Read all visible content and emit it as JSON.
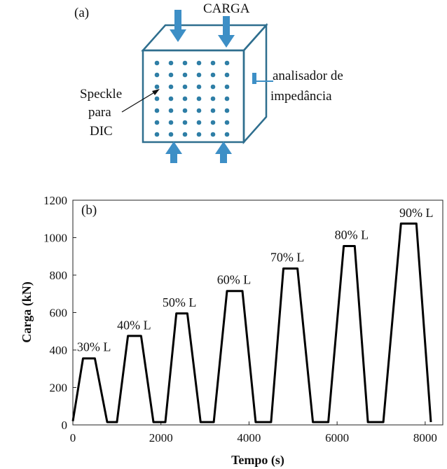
{
  "diagram": {
    "panel_label": "(a)",
    "load_label": "CARGA",
    "impedance_label_line1": "analisador de",
    "impedance_label_line2": "impedância",
    "speckle_label_line1": "Speckle",
    "speckle_label_line2": "para",
    "speckle_label_line3": "DIC",
    "colors": {
      "outline": "#2e6e8e",
      "arrow": "#3d8fc6",
      "dot": "#2e7ea6"
    }
  },
  "chart_data": {
    "type": "line",
    "panel_label": "(b)",
    "xlabel": "Tempo (s)",
    "ylabel": "Carga (kN)",
    "xlim": [
      0,
      8400
    ],
    "ylim": [
      0,
      1200
    ],
    "x_ticks": [
      0,
      2000,
      4000,
      6000,
      8000
    ],
    "y_ticks": [
      0,
      200,
      400,
      600,
      800,
      1000,
      1200
    ],
    "grid": false,
    "series": [
      {
        "x": [
          0,
          230,
          500,
          780,
          1000,
          1250,
          1550,
          1830,
          2100,
          2350,
          2600,
          2900,
          3200,
          3500,
          3850,
          4150,
          4500,
          4780,
          5100,
          5450,
          5800,
          6150,
          6400,
          6700,
          7050,
          7450,
          7800,
          8130
        ],
        "y": [
          20,
          355,
          355,
          15,
          15,
          475,
          475,
          15,
          15,
          595,
          595,
          15,
          15,
          715,
          715,
          15,
          15,
          835,
          835,
          15,
          15,
          955,
          955,
          15,
          15,
          1075,
          1075,
          15
        ]
      }
    ],
    "annotations": [
      {
        "text": "30% L",
        "x": 480,
        "y": 395
      },
      {
        "text": "40% L",
        "x": 1390,
        "y": 510
      },
      {
        "text": "50% L",
        "x": 2420,
        "y": 632
      },
      {
        "text": "60% L",
        "x": 3660,
        "y": 753
      },
      {
        "text": "70% L",
        "x": 4870,
        "y": 873
      },
      {
        "text": "80% L",
        "x": 6330,
        "y": 993
      },
      {
        "text": "90% L",
        "x": 7800,
        "y": 1110
      }
    ]
  }
}
